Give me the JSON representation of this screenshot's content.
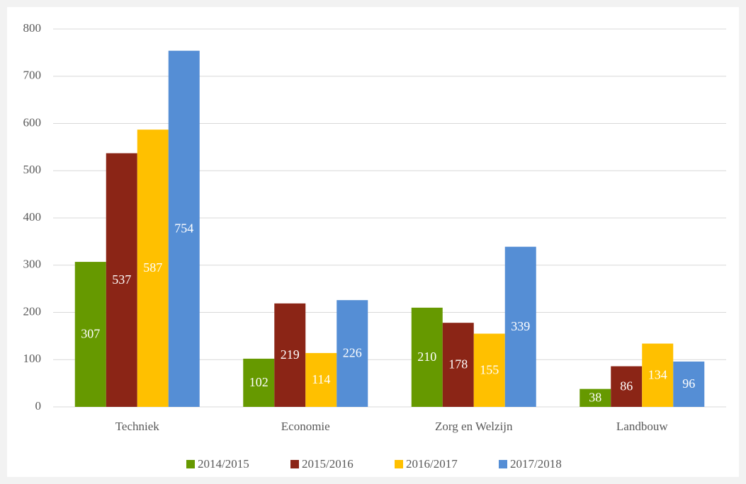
{
  "chart_data": {
    "type": "bar",
    "categories": [
      "Techniek",
      "Economie",
      "Zorg en Welzijn",
      "Landbouw"
    ],
    "series": [
      {
        "name": "2014/2015",
        "color": "#669900",
        "values": [
          307,
          102,
          210,
          38
        ]
      },
      {
        "name": "2015/2016",
        "color": "#8b2516",
        "values": [
          537,
          219,
          178,
          86
        ]
      },
      {
        "name": "2016/2017",
        "color": "#ffc000",
        "values": [
          587,
          114,
          155,
          134
        ]
      },
      {
        "name": "2017/2018",
        "color": "#558ed5",
        "values": [
          754,
          226,
          339,
          96
        ]
      }
    ],
    "ylim": [
      0,
      800
    ],
    "yticks": [
      0,
      100,
      200,
      300,
      400,
      500,
      600,
      700,
      800
    ],
    "grid": true,
    "legend": "bottom"
  }
}
